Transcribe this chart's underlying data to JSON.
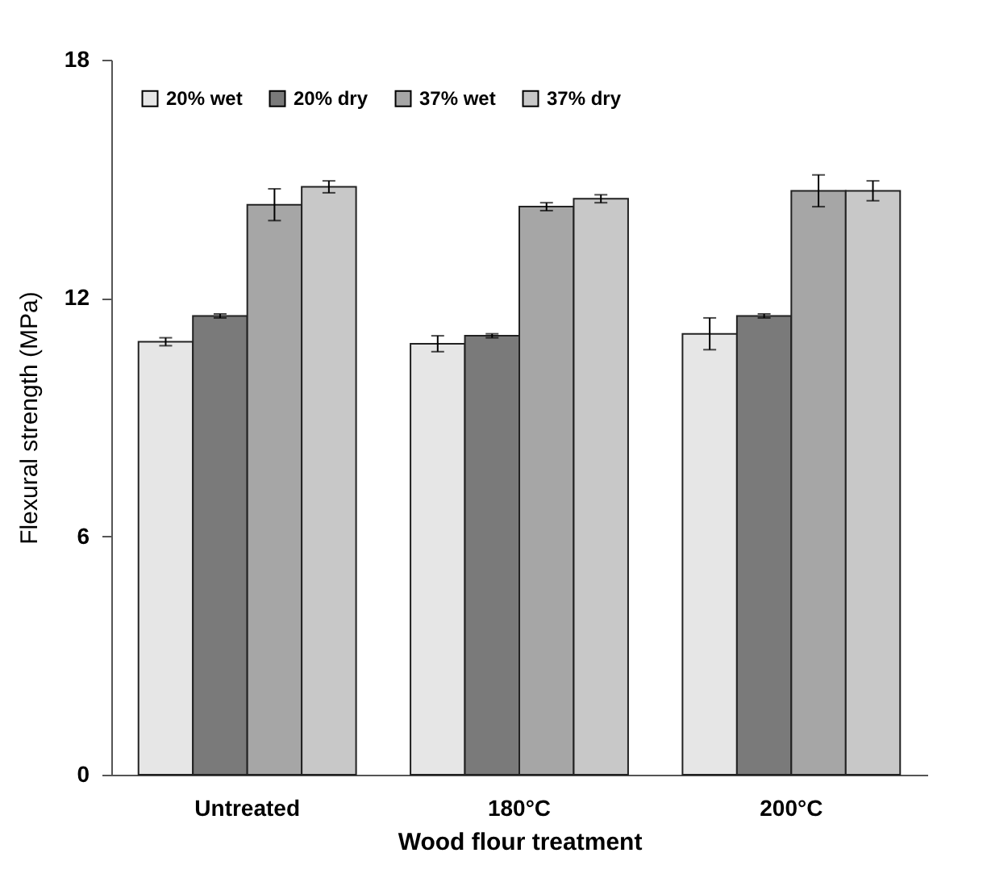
{
  "chart_data": {
    "type": "bar",
    "xlabel": "Wood flour treatment",
    "ylabel": "Flexural strength (MPa)",
    "categories": [
      "Untreated",
      "180°C",
      "200°C"
    ],
    "series": [
      {
        "name": "20% wet",
        "color": "#e6e6e6",
        "values": [
          10.9,
          10.85,
          11.1
        ],
        "errors": [
          0.1,
          0.2,
          0.4
        ]
      },
      {
        "name": "20% dry",
        "color": "#7a7a7a",
        "values": [
          11.55,
          11.05,
          11.55
        ],
        "errors": [
          0.05,
          0.05,
          0.05
        ]
      },
      {
        "name": "37% wet",
        "color": "#a6a6a6",
        "values": [
          14.35,
          14.3,
          14.7
        ],
        "errors": [
          0.4,
          0.1,
          0.4
        ]
      },
      {
        "name": "37% dry",
        "color": "#c8c8c8",
        "values": [
          14.8,
          14.5,
          14.7
        ],
        "errors": [
          0.15,
          0.1,
          0.25
        ]
      }
    ],
    "ylim": [
      0,
      18
    ],
    "yticks": [
      0,
      6,
      12,
      18
    ],
    "grid": false,
    "legend": "top left"
  }
}
